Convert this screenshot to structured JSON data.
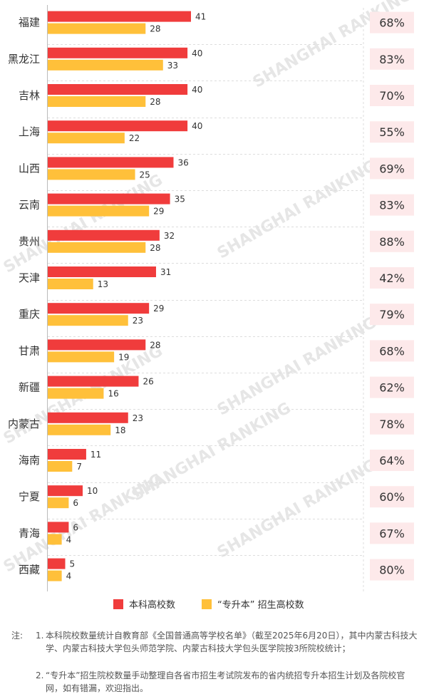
{
  "colors": {
    "undergrad": "#f03c3c",
    "zsb": "#ffc03a",
    "pct_box": "#fde9ea",
    "grid": "#dddddd",
    "axis": "#bbbbbb",
    "text": "#333333"
  },
  "chart_data": {
    "type": "bar",
    "orientation": "horizontal",
    "categories": [
      "福建",
      "黑龙江",
      "吉林",
      "上海",
      "山西",
      "云南",
      "贵州",
      "天津",
      "重庆",
      "甘肃",
      "新疆",
      "内蒙古",
      "海南",
      "宁夏",
      "青海",
      "西藏"
    ],
    "series": [
      {
        "name": "本科高校数",
        "values": [
          41,
          40,
          40,
          40,
          36,
          35,
          32,
          31,
          29,
          28,
          26,
          23,
          11,
          10,
          6,
          5
        ]
      },
      {
        "name": "“专升本” 招生高校数",
        "values": [
          28,
          33,
          28,
          22,
          25,
          29,
          28,
          13,
          23,
          19,
          16,
          18,
          7,
          6,
          4,
          4
        ]
      }
    ],
    "ratio_labels": [
      "68%",
      "83%",
      "70%",
      "55%",
      "69%",
      "83%",
      "88%",
      "42%",
      "79%",
      "68%",
      "62%",
      "78%",
      "64%",
      "60%",
      "67%",
      "80%"
    ],
    "xlim": [
      0,
      41
    ],
    "grid": true,
    "legend_position": "bottom"
  },
  "watermark": "SHANGHAI RANKING",
  "notes": {
    "prefix": "注:",
    "items": [
      {
        "num": "1.",
        "text": "本科院校数量统计自教育部《全国普通高等学校名单》（截至2025年6月20日），其中内蒙古科技大学、内蒙古科技大学包头师范学院、内蒙古科技大学包头医学院按3所院校统计；"
      },
      {
        "num": "2.",
        "text": "“专升本”招生院校数量手动整理自各省市招生考试院发布的省内统招专升本招生计划及各院校官网，如有错漏，欢迎指出。"
      }
    ]
  }
}
